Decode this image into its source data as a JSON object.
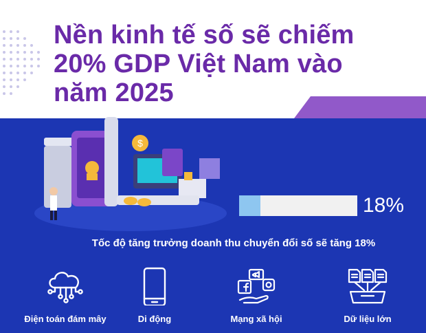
{
  "header": {
    "title_lines": [
      "Nền kinh tế số sẽ chiếm",
      "20% GDP Việt Nam vào",
      "năm 2025"
    ]
  },
  "growth": {
    "value_text": "18%",
    "fill_fraction": 0.18,
    "caption": "Tốc độ tăng trưởng doanh thu chuyển đổi số sẽ tăng 18%"
  },
  "features": [
    {
      "label": "Điện toán đám mây",
      "icon": "cloud-network-icon"
    },
    {
      "label": "Di động",
      "icon": "smartphone-icon"
    },
    {
      "label": "Mạng xã hội",
      "icon": "social-media-icon"
    },
    {
      "label": "Dữ liệu lớn",
      "icon": "big-data-icon"
    }
  ],
  "colors": {
    "title": "#6a2aa8",
    "accent_purple": "#9159c9",
    "background_blue": "#1c36b3",
    "progress_fill": "#8ec6f0",
    "progress_track": "#f1f1f1"
  }
}
